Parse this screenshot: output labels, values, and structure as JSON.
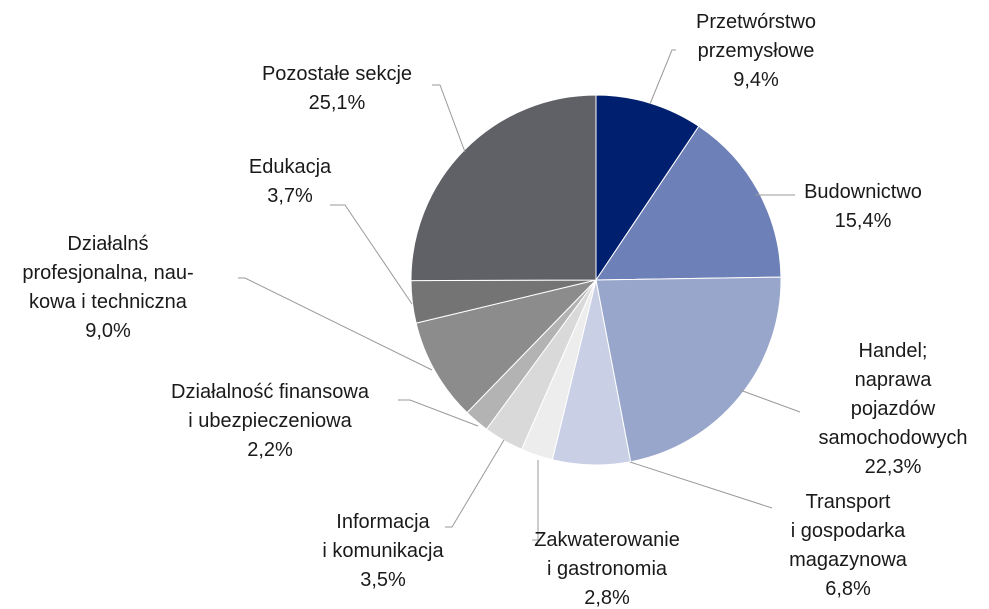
{
  "chart_data": {
    "type": "pie",
    "categories": [
      "Przetwórstwo\nprzemysłowe",
      "Budownictwo",
      "Handel; naprawa\npojazdów\nsamochodowych",
      "Transport\ni gospodarka\nmagazynowa",
      "Zakwaterowanie\ni gastronomia",
      "Informacja\ni komunikacja",
      "Działalność finansowa\ni ubezpieczeniowa",
      "Działalnś\nprofesjonalna, nau-\nkowa i techniczna",
      "Edukacja",
      "Pozostałe sekcje"
    ],
    "values": [
      9.4,
      15.4,
      22.3,
      6.8,
      2.8,
      3.5,
      2.2,
      9.0,
      3.7,
      25.1
    ],
    "value_labels": [
      "9,4%",
      "15,4%",
      "22,3%",
      "6,8%",
      "2,8%",
      "3,5%",
      "2,2%",
      "9,0%",
      "3,7%",
      "25,1%"
    ],
    "colors": [
      "#001f6e",
      "#6e80b8",
      "#98a6cb",
      "#c9cfe4",
      "#ededed",
      "#d9d9d9",
      "#b3b3b3",
      "#8c8c8c",
      "#747474",
      "#606166"
    ]
  }
}
